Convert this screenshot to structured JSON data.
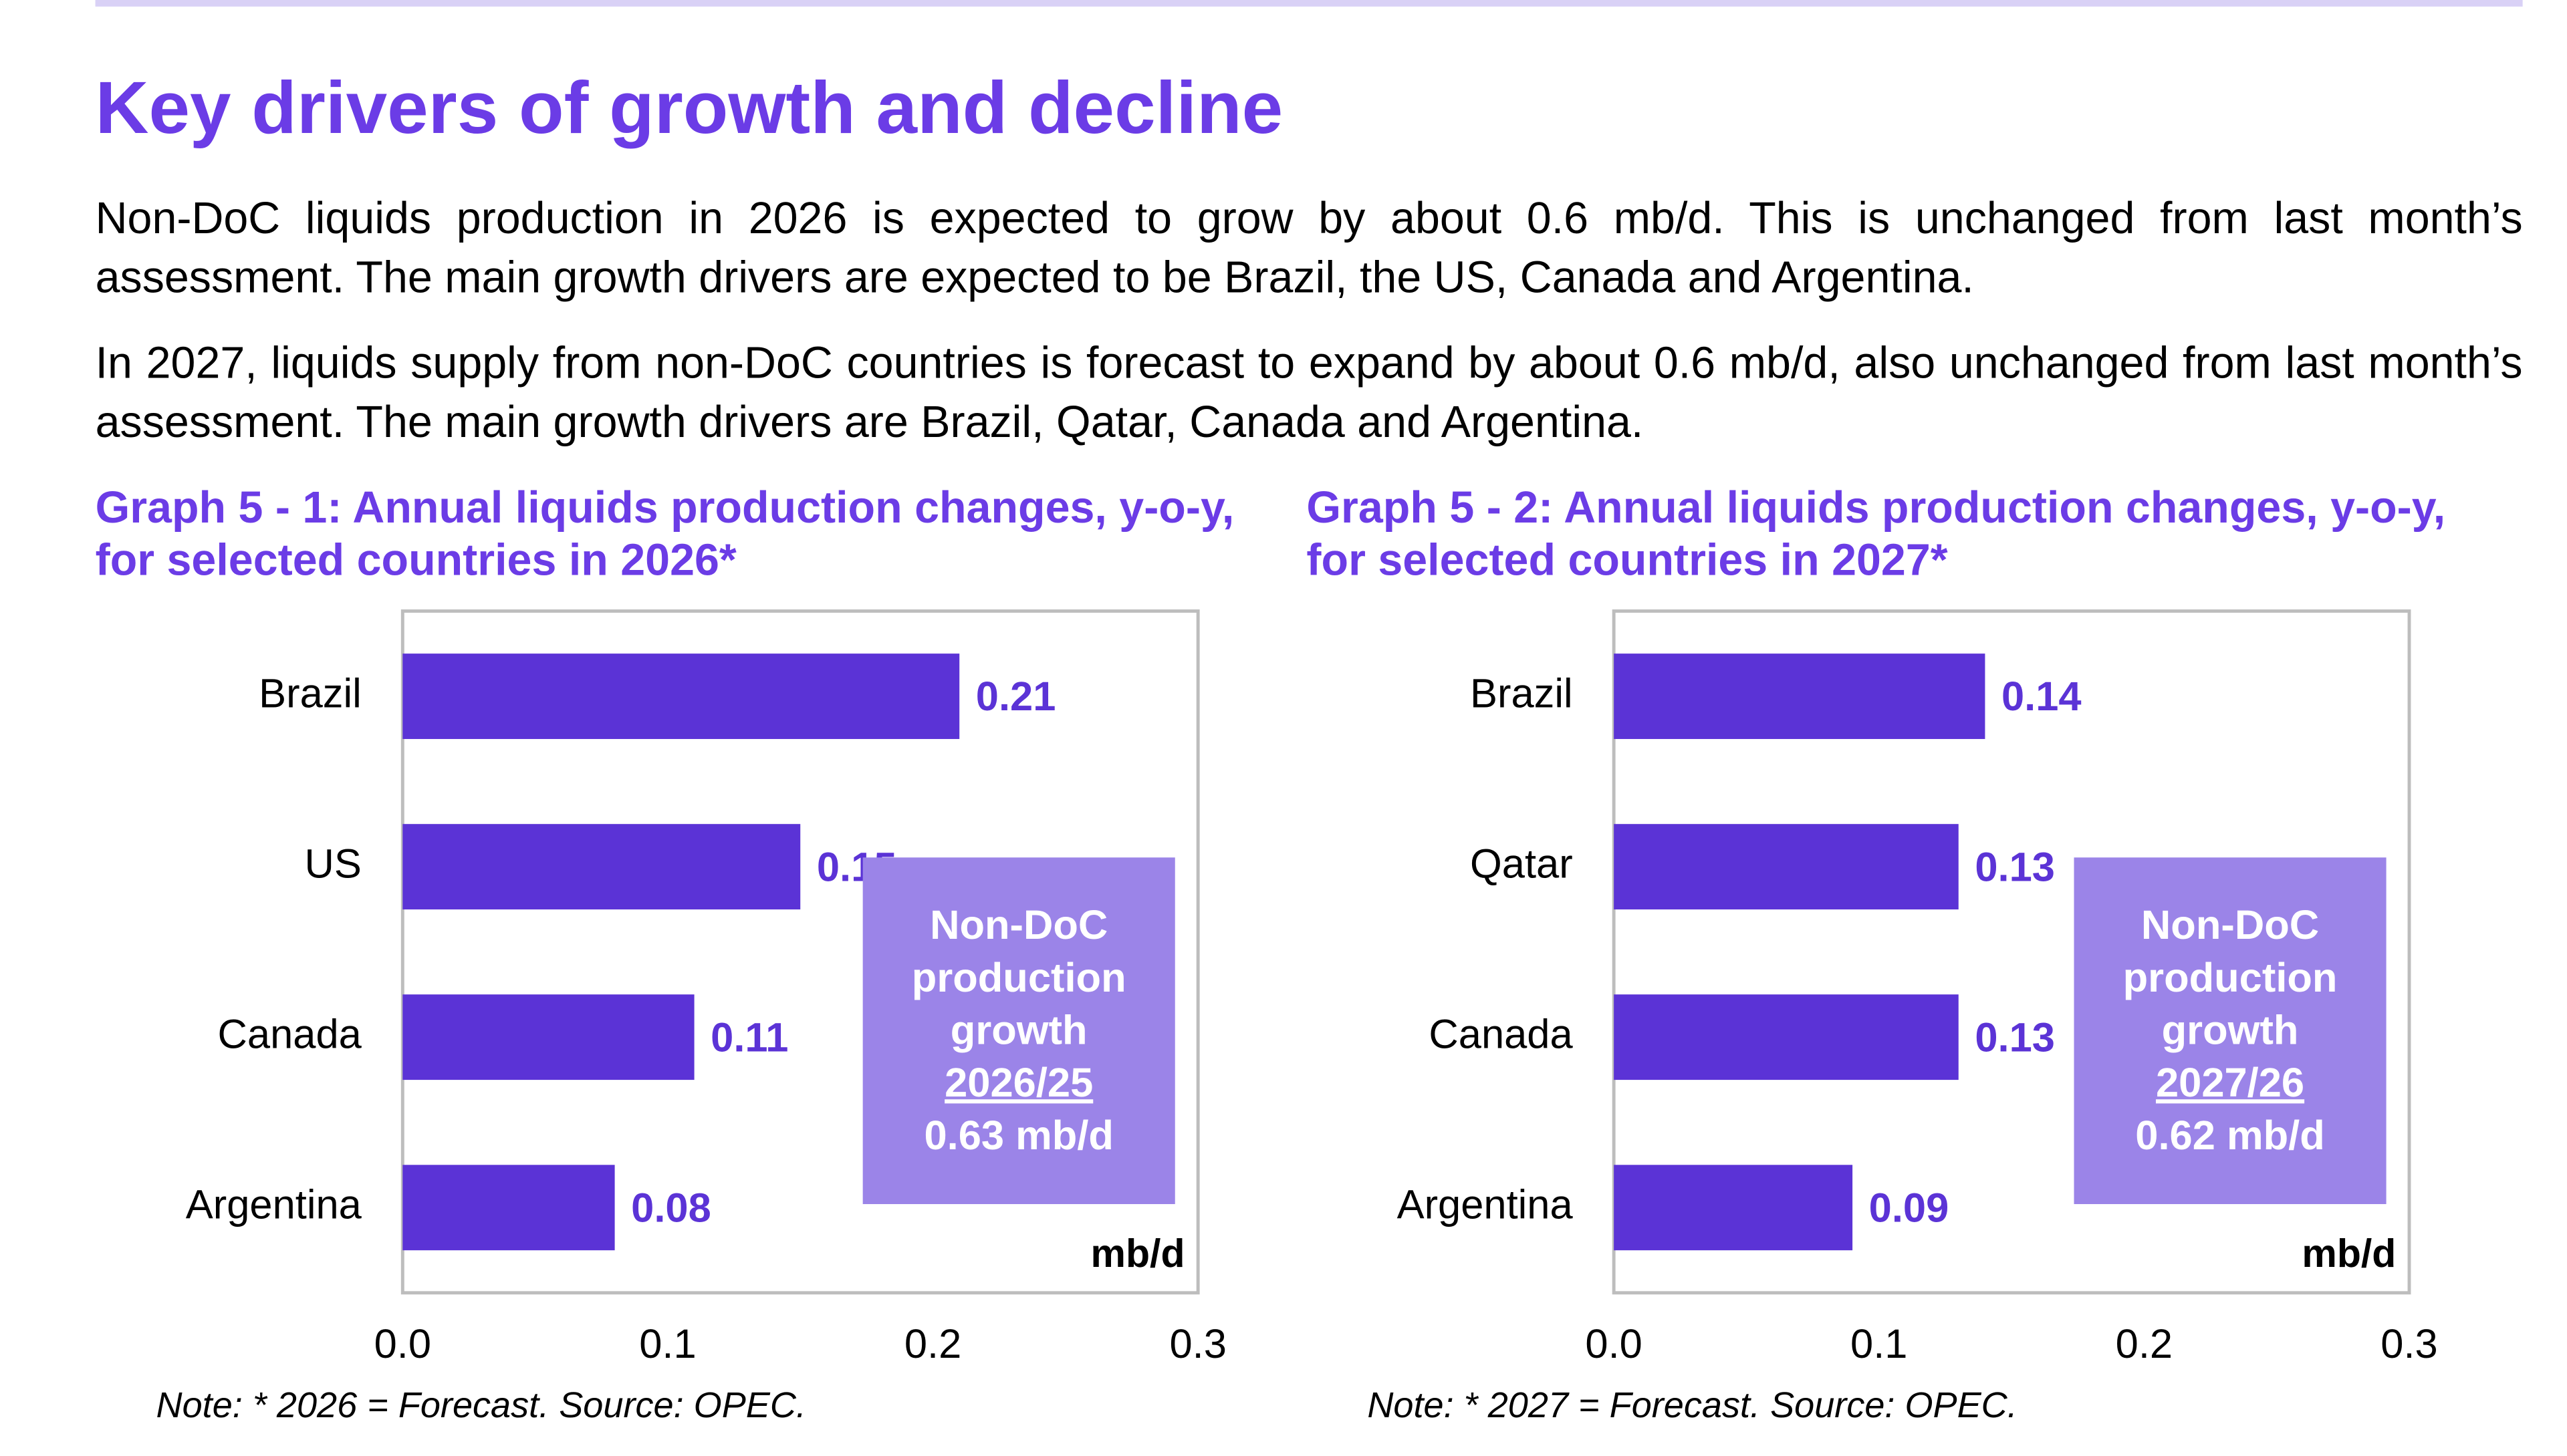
{
  "header": {
    "title": "Key drivers of growth and decline"
  },
  "paragraphs": [
    "Non-DoC liquids production in 2026 is expected to grow by about 0.6 mb/d. This is unchanged from last month’s assessment. The main growth drivers are expected to be Brazil, the US, Canada and Argentina.",
    "In 2027, liquids supply from non-DoC countries is forecast to expand by about 0.6 mb/d, also unchanged from last month’s assessment. The main growth drivers are Brazil, Qatar, Canada and Argentina."
  ],
  "chart_data": [
    {
      "type": "bar",
      "orientation": "horizontal",
      "title": "Graph 5 - 1: Annual liquids production changes, y-o-y, for selected countries in 2026*",
      "categories": [
        "Brazil",
        "US",
        "Canada",
        "Argentina"
      ],
      "values": [
        0.21,
        0.15,
        0.11,
        0.08
      ],
      "color": "#5b33d6",
      "xlim": [
        0,
        0.3
      ],
      "xticks": [
        {
          "value": 0,
          "label": "0.0"
        },
        0.1,
        0.2,
        0.3
      ],
      "unit_label": "mb/d",
      "annotation": [
        "Non-DoC",
        "production",
        "growth",
        "2026/25",
        "0.63 mb/d"
      ],
      "note": "Note: * 2026 = Forecast. Source: OPEC."
    },
    {
      "type": "bar",
      "orientation": "horizontal",
      "title": "Graph 5 - 2: Annual liquids production changes, y-o-y, for selected countries in 2027*",
      "categories": [
        "Brazil",
        "Qatar",
        "Canada",
        "Argentina"
      ],
      "values": [
        0.14,
        0.13,
        0.13,
        0.09
      ],
      "color": "#5b33d6",
      "xlim": [
        0,
        0.3
      ],
      "xticks": [
        {
          "value": 0,
          "label": "0.0"
        },
        0.1,
        0.2,
        0.3
      ],
      "unit_label": "mb/d",
      "annotation": [
        "Non-DoC",
        "production",
        "growth",
        "2027/26",
        "0.62 mb/d"
      ],
      "note": "Note: * 2027 = Forecast. Source: OPEC."
    }
  ]
}
